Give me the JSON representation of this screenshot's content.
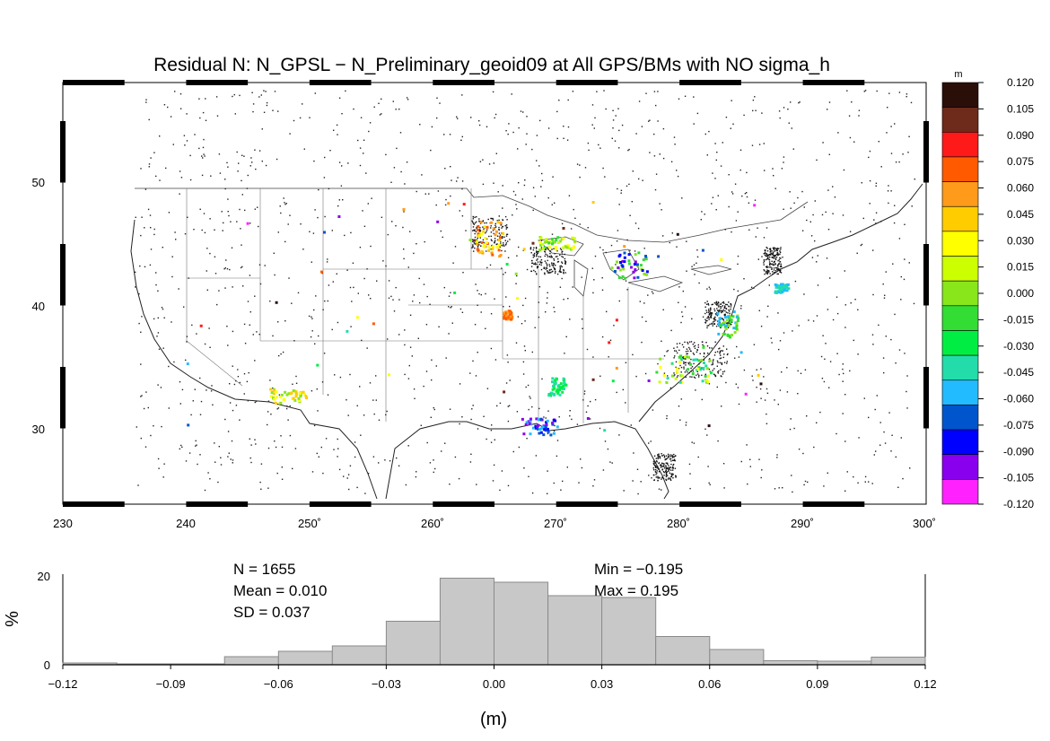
{
  "map": {
    "title": "Residual N: N_GPSL − N_Preliminary_geoid09 at All GPS/BMs with NO sigma_h",
    "lon_ticks": [
      "230",
      "240",
      "250˚",
      "260˚",
      "270˚",
      "280˚",
      "290˚",
      "300˚"
    ],
    "lat_ticks": [
      "50",
      "40",
      "30"
    ]
  },
  "colorbar": {
    "unit": "m",
    "levels": [
      "0.120",
      "0.105",
      "0.090",
      "0.075",
      "0.060",
      "0.045",
      "0.030",
      "0.015",
      "0.000",
      "-0.015",
      "-0.030",
      "-0.045",
      "-0.060",
      "-0.075",
      "-0.090",
      "-0.105",
      "-0.120"
    ],
    "colors": [
      "#2a0f08",
      "#6e2a1a",
      "#ff1a1a",
      "#ff5a00",
      "#ff9a1a",
      "#ffcc00",
      "#ffff00",
      "#ccff00",
      "#88e61a",
      "#33dd33",
      "#00ee44",
      "#22ddaa",
      "#22bbff",
      "#0055cc",
      "#0000ff",
      "#8800ee",
      "#ff22ff"
    ]
  },
  "histogram": {
    "stats": {
      "n": "N =  1655",
      "mean": "Mean = 0.010",
      "sd": "SD = 0.037",
      "min": "Min = −0.195",
      "max": "Max = 0.195"
    },
    "ylabel": "%",
    "xlabel": "(m)",
    "x_ticks": [
      "−0.12",
      "−0.09",
      "−0.06",
      "−0.03",
      "0.00",
      "0.03",
      "0.06",
      "0.09",
      "0.12"
    ],
    "y_ticks": [
      "0",
      "20"
    ]
  },
  "chart_data": {
    "type": "bar",
    "title": "",
    "xlabel": "(m)",
    "ylabel": "%",
    "bin_edges": [
      -0.12,
      -0.105,
      -0.09,
      -0.075,
      -0.06,
      -0.045,
      -0.03,
      -0.015,
      0.0,
      0.015,
      0.03,
      0.045,
      0.06,
      0.075,
      0.09,
      0.105,
      0.12
    ],
    "values": [
      0.4,
      0.2,
      0.2,
      1.8,
      3.0,
      4.2,
      9.7,
      19.3,
      18.4,
      15.4,
      15.0,
      6.3,
      3.4,
      0.9,
      0.8,
      1.7
    ],
    "xlim": [
      -0.12,
      0.12
    ],
    "ylim": [
      0,
      20
    ],
    "bar_color": "#c8c8c8"
  }
}
